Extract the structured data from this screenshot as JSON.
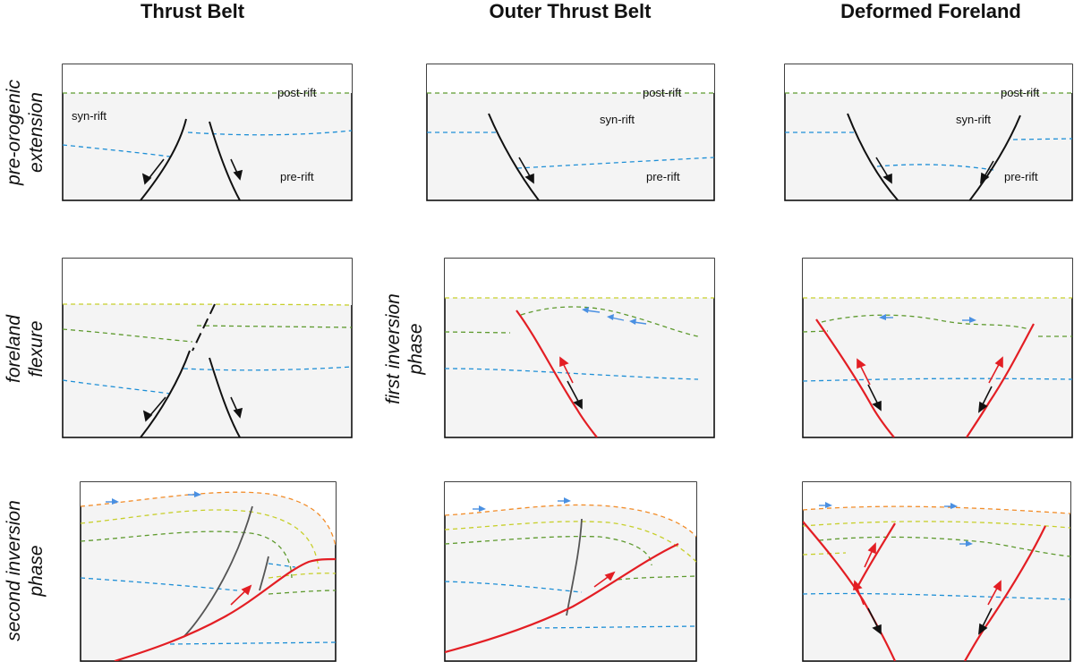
{
  "columns": {
    "thrust_belt": "Thrust Belt",
    "outer_thrust_belt": "Outer Thrust Belt",
    "deformed_foreland": "Deformed Foreland"
  },
  "rows": {
    "pre_orogenic_extension": [
      "pre-orogenic",
      "extension"
    ],
    "foreland_flexure": [
      "foreland",
      "flexure"
    ],
    "first_inversion_phase": [
      "first inversion",
      "phase"
    ],
    "second_inversion_phase": [
      "second inversion",
      "phase"
    ]
  },
  "units": {
    "post_rift": "post-rift",
    "syn_rift": "syn-rift",
    "pre_rift": "pre-rift"
  },
  "colors": {
    "normal_fault": "#111111",
    "reactivated_fault": "#e31e24",
    "post_rift_horizon": "#5e9a2e",
    "pre_rift_horizon": "#1e8fd6",
    "foreland_horizon": "#c7cf2b",
    "syn_orogenic_horizon": "#f28c28",
    "transport_arrow": "#4a90e2"
  }
}
